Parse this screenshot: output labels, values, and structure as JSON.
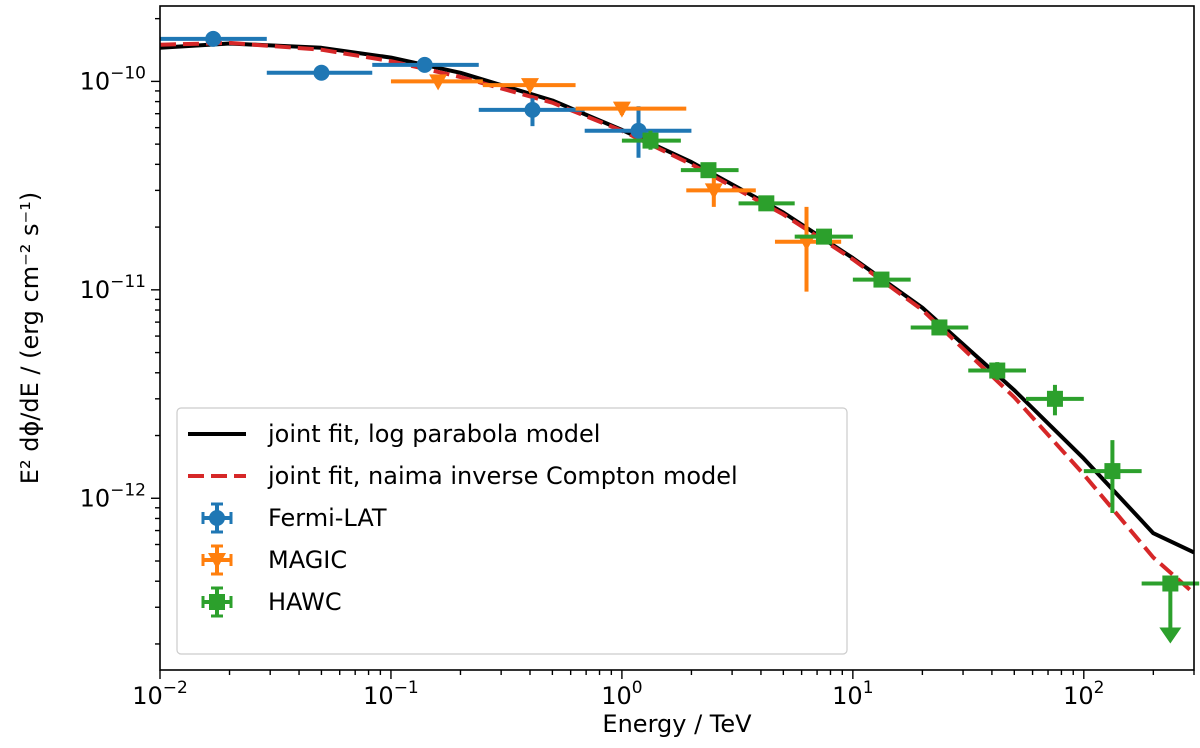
{
  "chart_data": {
    "type": "scatter",
    "title": "",
    "xlabel": "Energy / TeV",
    "ylabel": "E² dϕ/dE / (erg cm⁻² s⁻¹)",
    "xscale": "log",
    "yscale": "log",
    "xlim": [
      0.01,
      300
    ],
    "ylim": [
      1.5e-13,
      2.3e-10
    ],
    "grid": false,
    "legend_position": "lower-left",
    "x_ticks": [
      {
        "value": 0.01,
        "base": "10",
        "exp": "−2"
      },
      {
        "value": 0.1,
        "base": "10",
        "exp": "−1"
      },
      {
        "value": 1,
        "base": "10",
        "exp": "0"
      },
      {
        "value": 10,
        "base": "10",
        "exp": "1"
      },
      {
        "value": 100,
        "base": "10",
        "exp": "2"
      }
    ],
    "y_ticks": [
      {
        "value": 1e-12,
        "base": "10",
        "exp": "−12"
      },
      {
        "value": 1e-11,
        "base": "10",
        "exp": "−11"
      },
      {
        "value": 1e-10,
        "base": "10",
        "exp": "−10"
      }
    ],
    "lines": [
      {
        "name": "joint fit, log parabola model",
        "color": "#000000",
        "style": "solid",
        "points": [
          [
            0.01,
            1.45e-10
          ],
          [
            0.02,
            1.52e-10
          ],
          [
            0.05,
            1.45e-10
          ],
          [
            0.1,
            1.3e-10
          ],
          [
            0.2,
            1.1e-10
          ],
          [
            0.5,
            8.1e-11
          ],
          [
            1,
            5.85e-11
          ],
          [
            2,
            4.1e-11
          ],
          [
            5,
            2.35e-11
          ],
          [
            10,
            1.42e-11
          ],
          [
            20,
            8.2e-12
          ],
          [
            50,
            3.3e-12
          ],
          [
            100,
            1.55e-12
          ],
          [
            200,
            6.8e-13
          ],
          [
            300,
            5.5e-13
          ]
        ]
      },
      {
        "name": "joint fit, naima inverse Compton model",
        "color": "#d62728",
        "style": "dashed",
        "points": [
          [
            0.01,
            1.5e-10
          ],
          [
            0.02,
            1.53e-10
          ],
          [
            0.05,
            1.42e-10
          ],
          [
            0.1,
            1.25e-10
          ],
          [
            0.2,
            1.05e-10
          ],
          [
            0.5,
            7.9e-11
          ],
          [
            1,
            5.8e-11
          ],
          [
            2,
            4e-11
          ],
          [
            5,
            2.3e-11
          ],
          [
            10,
            1.4e-11
          ],
          [
            20,
            8e-12
          ],
          [
            50,
            3.05e-12
          ],
          [
            100,
            1.3e-12
          ],
          [
            200,
            5.2e-13
          ],
          [
            300,
            3.5e-13
          ]
        ]
      }
    ],
    "series": [
      {
        "name": "Fermi-LAT",
        "color": "#1f77b4",
        "marker": "circle",
        "points": [
          {
            "x": 0.017,
            "y": 1.6e-10,
            "xlo": 0.01,
            "xhi": 0.029,
            "ylo": 1.6e-10,
            "yhi": 1.6e-10
          },
          {
            "x": 0.05,
            "y": 1.1e-10,
            "xlo": 0.029,
            "xhi": 0.083,
            "ylo": 1.1e-10,
            "yhi": 1.1e-10
          },
          {
            "x": 0.14,
            "y": 1.2e-10,
            "xlo": 0.083,
            "xhi": 0.24,
            "ylo": 1.2e-10,
            "yhi": 1.2e-10
          },
          {
            "x": 0.41,
            "y": 7.3e-11,
            "xlo": 0.24,
            "xhi": 0.69,
            "ylo": 6.1e-11,
            "yhi": 8.3e-11
          },
          {
            "x": 1.18,
            "y": 5.8e-11,
            "xlo": 0.69,
            "xhi": 2.0,
            "ylo": 4.3e-11,
            "yhi": 7.6e-11
          }
        ]
      },
      {
        "name": "MAGIC",
        "color": "#ff7f0e",
        "marker": "triangle-down",
        "points": [
          {
            "x": 0.16,
            "y": 1e-10,
            "xlo": 0.1,
            "xhi": 0.25,
            "ylo": 1e-10,
            "yhi": 1e-10
          },
          {
            "x": 0.4,
            "y": 9.6e-11,
            "xlo": 0.25,
            "xhi": 0.63,
            "ylo": 9.6e-11,
            "yhi": 9.6e-11
          },
          {
            "x": 1.0,
            "y": 7.4e-11,
            "xlo": 0.63,
            "xhi": 1.9,
            "ylo": 6.9e-11,
            "yhi": 7.9e-11
          },
          {
            "x": 2.5,
            "y": 3e-11,
            "xlo": 1.9,
            "xhi": 3.8,
            "ylo": 2.5e-11,
            "yhi": 3.5e-11
          },
          {
            "x": 6.3,
            "y": 1.7e-11,
            "xlo": 4.6,
            "xhi": 8.9,
            "ylo": 9.8e-12,
            "yhi": 2.5e-11
          }
        ]
      },
      {
        "name": "HAWC",
        "color": "#2ca02c",
        "marker": "square",
        "points": [
          {
            "x": 1.33,
            "y": 5.2e-11,
            "xlo": 1.0,
            "xhi": 1.8,
            "ylo": 4.7e-11,
            "yhi": 5.8e-11
          },
          {
            "x": 2.37,
            "y": 3.75e-11,
            "xlo": 1.8,
            "xhi": 3.2,
            "ylo": 3.5e-11,
            "yhi": 4e-11
          },
          {
            "x": 4.22,
            "y": 2.6e-11,
            "xlo": 3.2,
            "xhi": 5.6,
            "ylo": 2.45e-11,
            "yhi": 2.75e-11
          },
          {
            "x": 7.5,
            "y": 1.8e-11,
            "xlo": 5.6,
            "xhi": 10.0,
            "ylo": 1.7e-11,
            "yhi": 1.9e-11
          },
          {
            "x": 13.3,
            "y": 1.12e-11,
            "xlo": 10.0,
            "xhi": 17.8,
            "ylo": 1.05e-11,
            "yhi": 1.19e-11
          },
          {
            "x": 23.7,
            "y": 6.6e-12,
            "xlo": 17.8,
            "xhi": 31.6,
            "ylo": 6.1e-12,
            "yhi": 7.1e-12
          },
          {
            "x": 42.2,
            "y": 4.1e-12,
            "xlo": 31.6,
            "xhi": 56.2,
            "ylo": 3.7e-12,
            "yhi": 4.5e-12
          },
          {
            "x": 75,
            "y": 3e-12,
            "xlo": 56.2,
            "xhi": 100,
            "ylo": 2.5e-12,
            "yhi": 3.5e-12
          },
          {
            "x": 133,
            "y": 1.35e-12,
            "xlo": 100,
            "xhi": 178,
            "ylo": 8.5e-13,
            "yhi": 1.9e-12
          },
          {
            "x": 237,
            "y": 3.9e-13,
            "xlo": 178,
            "xhi": 316,
            "ylo": 3.9e-13,
            "yhi": 3.9e-13,
            "upper_limit": true
          }
        ]
      }
    ]
  }
}
